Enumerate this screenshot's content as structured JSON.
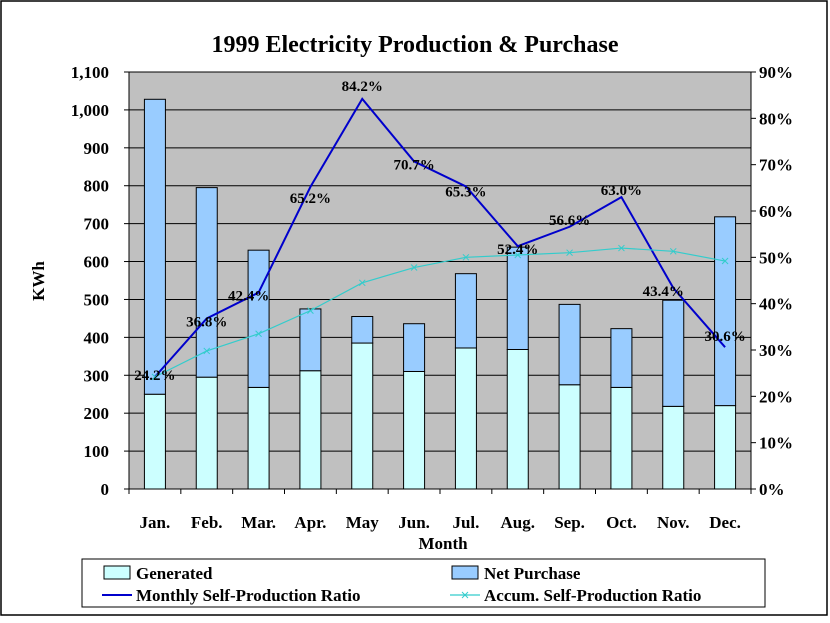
{
  "chart_data": {
    "type": "bar",
    "stacked": true,
    "title": "1999 Electricity Production & Purchase",
    "xlabel": "Month",
    "ylabel": "KWh",
    "y2label": "",
    "categories": [
      "Jan.",
      "Feb.",
      "Mar.",
      "Apr.",
      "May",
      "Jun.",
      "Jul.",
      "Aug.",
      "Sep.",
      "Oct.",
      "Nov.",
      "Dec."
    ],
    "ylim": [
      0,
      1100
    ],
    "y_ticks": [
      "0",
      "100",
      "200",
      "300",
      "400",
      "500",
      "600",
      "700",
      "800",
      "900",
      "1,000",
      "1,100"
    ],
    "y2lim": [
      0,
      90
    ],
    "y2_ticks": [
      "0%",
      "10%",
      "20%",
      "30%",
      "40%",
      "50%",
      "60%",
      "70%",
      "80%",
      "90%"
    ],
    "grid": true,
    "legend_position": "bottom",
    "series": [
      {
        "name": "Generated",
        "kind": "bar",
        "axis": "left",
        "color": "#ccffff",
        "values": [
          250,
          295,
          268,
          312,
          385,
          310,
          372,
          368,
          275,
          268,
          218,
          220
        ]
      },
      {
        "name": "Net Purchase",
        "kind": "bar",
        "axis": "left",
        "color": "#99ccff",
        "values": [
          778,
          500,
          362,
          163,
          70,
          126,
          196,
          270,
          212,
          155,
          280,
          498
        ]
      },
      {
        "name": "Monthly Self-Production Ratio",
        "kind": "line",
        "axis": "right",
        "color": "#0000cc",
        "values": [
          24.2,
          36.8,
          42.4,
          65.2,
          84.2,
          70.7,
          65.3,
          52.4,
          56.6,
          63.0,
          43.4,
          30.6
        ],
        "labels": [
          "24.2%",
          "36.8%",
          "42.4%",
          "65.2%",
          "84.2%",
          "70.7%",
          "65.3%",
          "52.4%",
          "56.6%",
          "63.0%",
          "43.4%",
          "30.6%"
        ]
      },
      {
        "name": "Accum. Self-Production Ratio",
        "kind": "line",
        "axis": "right",
        "color": "#33cccc",
        "values": [
          24.2,
          29.8,
          33.5,
          38.5,
          44.5,
          47.8,
          50.0,
          50.5,
          51.0,
          52.0,
          51.3,
          49.2
        ]
      }
    ],
    "colors": {
      "plot_background": "#c0c0c0",
      "page_background": "#ffffff",
      "border": "#000000"
    }
  }
}
